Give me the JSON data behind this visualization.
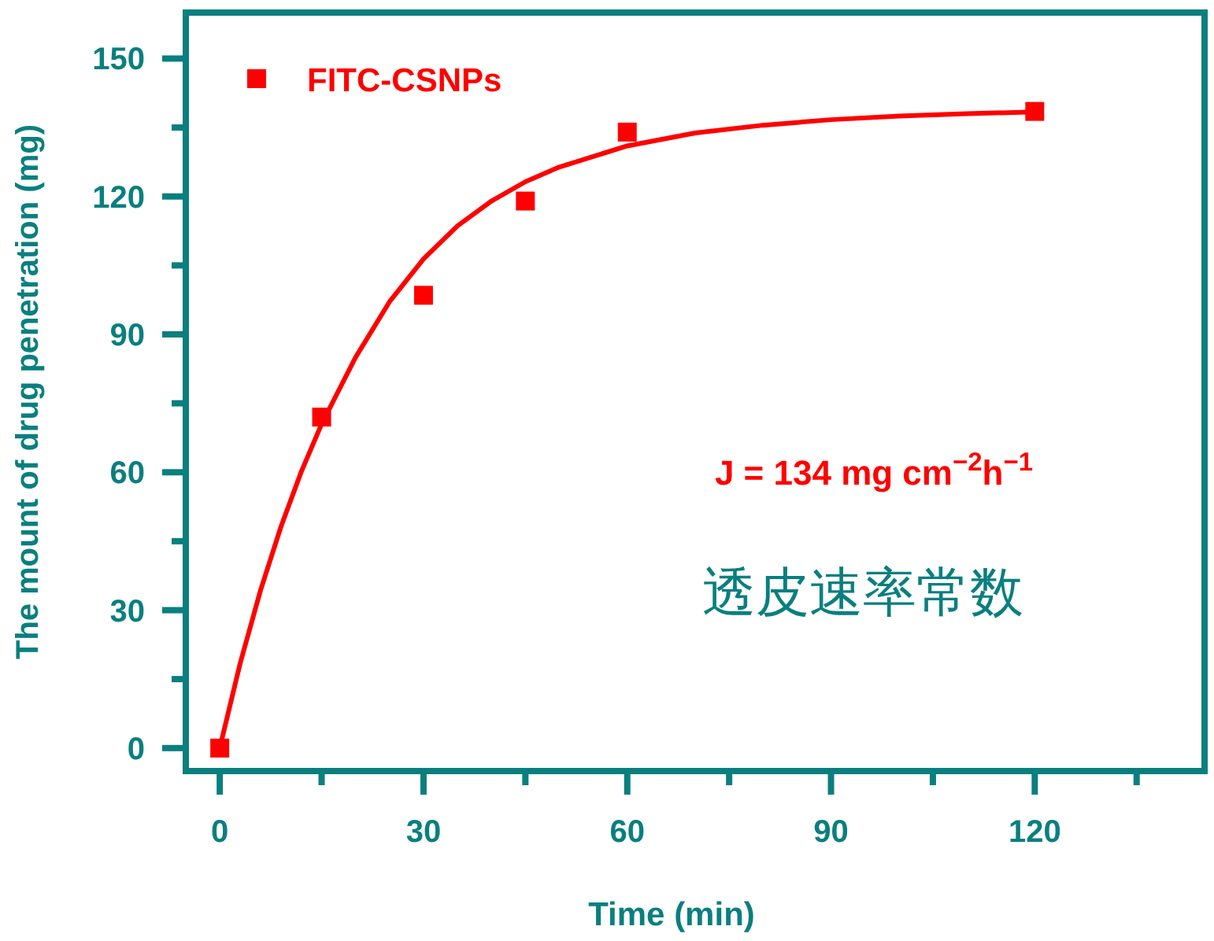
{
  "chart_data": {
    "type": "scatter",
    "xlabel": "Time (min)",
    "ylabel": "The mount of drug penetration (mg)",
    "xlim": [
      -5,
      145
    ],
    "ylim": [
      -5,
      160
    ],
    "xticks": [
      0,
      {
        "value": 15,
        "label": null
      },
      30,
      {
        "value": 45,
        "label": null
      },
      60,
      {
        "value": 75,
        "label": null
      },
      90,
      {
        "value": 105,
        "label": null
      },
      120,
      {
        "value": 135,
        "label": null
      }
    ],
    "yticks": [
      0,
      {
        "value": 15,
        "label": null
      },
      30,
      {
        "value": 45,
        "label": null
      },
      60,
      {
        "value": 75,
        "label": null
      },
      90,
      {
        "value": 105,
        "label": null
      },
      120,
      {
        "value": 135,
        "label": null
      },
      150
    ],
    "legend": "top left",
    "grid": false,
    "annotations": [
      "J = 134 mg cm$^{−2}$h$^{−1}$",
      "透皮速率常数"
    ],
    "series": [
      {
        "name": "FITC-CSNPs",
        "color": "#ff0000",
        "marker": "square",
        "x": [
          0,
          15,
          30,
          45,
          60,
          120
        ],
        "values": [
          0,
          72,
          98.5,
          119,
          134,
          138.5
        ]
      },
      {
        "type": "line",
        "marker": "none",
        "color": "#ff0000",
        "x": [
          0,
          3,
          6,
          9,
          12,
          15,
          20,
          25,
          30,
          35,
          40,
          45,
          50,
          60,
          70,
          80,
          90,
          100,
          110,
          120
        ],
        "values": [
          0,
          18.4,
          34.3,
          48.1,
          60.1,
          70.5,
          85,
          97.1,
          106.4,
          113.6,
          119,
          123.2,
          126.4,
          131,
          133.8,
          135.5,
          136.7,
          137.5,
          138,
          138.4
        ]
      }
    ]
  }
}
